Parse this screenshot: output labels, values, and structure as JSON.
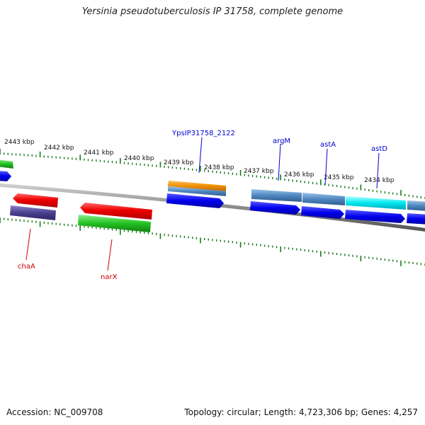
{
  "title": "Yersinia pseudotuberculosis IP 31758, complete genome",
  "footer": {
    "accession": "Accession: NC_009708",
    "summary": "Topology: circular; Length: 4,723,306 bp; Genes: 4,257"
  },
  "ruler_labels": [
    "2443 kbp",
    "2442 kbp",
    "2441 kbp",
    "2440 kbp",
    "2439 kbp",
    "2438 kbp",
    "2437 kbp",
    "2436 kbp",
    "2435 kbp",
    "2434 kbp"
  ],
  "gene_labels": {
    "top": [
      "YpsIP31758_2122",
      "argM",
      "astA",
      "astD"
    ],
    "bottom": [
      "chaA",
      "narX"
    ]
  },
  "colors": {
    "label_top": "#0000cc",
    "label_bottom": "#cc0000",
    "tick": "#1a7a1a",
    "backbone": "#888888"
  }
}
